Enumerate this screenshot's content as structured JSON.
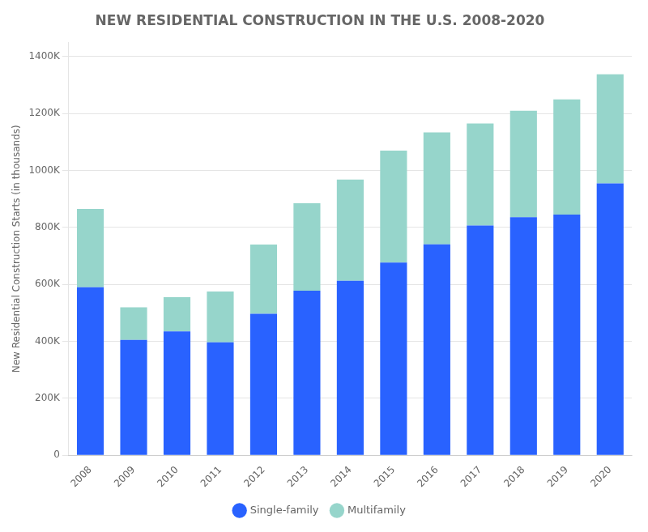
{
  "chart_data": {
    "type": "bar",
    "title": "NEW RESIDENTIAL CONSTRUCTION IN THE U.S. 2008-2020",
    "ylabel": "New Residential Construction Starts (in thousands)",
    "categories": [
      "2008",
      "2009",
      "2010",
      "2011",
      "2012",
      "2013",
      "2014",
      "2015",
      "2016",
      "2017",
      "2018",
      "2019",
      "2020"
    ],
    "series": [
      {
        "name": "Single-family",
        "color": "#2962FF",
        "values": [
          590000,
          405000,
          435000,
          397000,
          497000,
          578000,
          613000,
          677000,
          741000,
          807000,
          836000,
          845000,
          955000
        ]
      },
      {
        "name": "Multifamily",
        "color": "#96D5CB",
        "values": [
          275000,
          115000,
          120000,
          178000,
          243000,
          307000,
          355000,
          393000,
          393000,
          358000,
          374000,
          405000,
          383000
        ]
      }
    ],
    "stacked": true,
    "ylim": [
      0,
      1450000
    ],
    "yticks": [
      0,
      {
        "value": 200000,
        "label": "200K"
      },
      {
        "value": 400000,
        "label": "400K"
      },
      {
        "value": 600000,
        "label": "600K"
      },
      {
        "value": 800000,
        "label": "800K"
      },
      {
        "value": 1000000,
        "label": "1000K"
      },
      {
        "value": 1200000,
        "label": "1200K"
      },
      {
        "value": 1400000,
        "label": "1400K"
      }
    ],
    "grid": true,
    "legend": "bottom"
  }
}
